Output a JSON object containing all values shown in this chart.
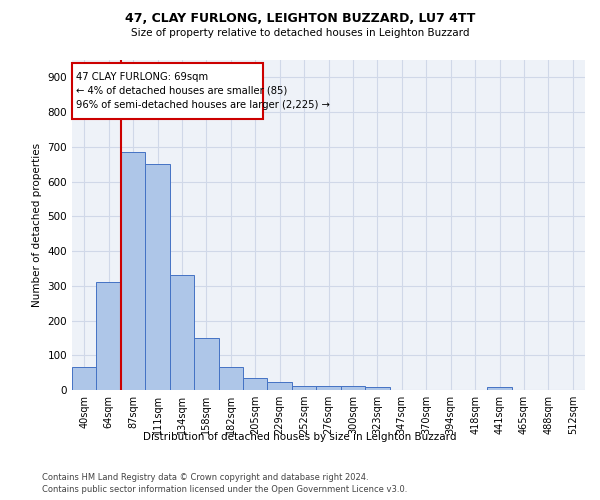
{
  "title1": "47, CLAY FURLONG, LEIGHTON BUZZARD, LU7 4TT",
  "title2": "Size of property relative to detached houses in Leighton Buzzard",
  "xlabel": "Distribution of detached houses by size in Leighton Buzzard",
  "ylabel": "Number of detached properties",
  "bin_labels": [
    "40sqm",
    "64sqm",
    "87sqm",
    "111sqm",
    "134sqm",
    "158sqm",
    "182sqm",
    "205sqm",
    "229sqm",
    "252sqm",
    "276sqm",
    "300sqm",
    "323sqm",
    "347sqm",
    "370sqm",
    "394sqm",
    "418sqm",
    "441sqm",
    "465sqm",
    "488sqm",
    "512sqm"
  ],
  "bar_heights": [
    65,
    310,
    685,
    650,
    330,
    150,
    65,
    35,
    22,
    12,
    12,
    12,
    8,
    0,
    0,
    0,
    0,
    10,
    0,
    0,
    0
  ],
  "bar_color": "#aec6e8",
  "bar_edge_color": "#4472c4",
  "annotation_text": "47 CLAY FURLONG: 69sqm\n← 4% of detached houses are smaller (85)\n96% of semi-detached houses are larger (2,225) →",
  "vline_color": "#cc0000",
  "box_edge_color": "#cc0000",
  "ylim": [
    0,
    950
  ],
  "yticks": [
    0,
    100,
    200,
    300,
    400,
    500,
    600,
    700,
    800,
    900
  ],
  "footer1": "Contains HM Land Registry data © Crown copyright and database right 2024.",
  "footer2": "Contains public sector information licensed under the Open Government Licence v3.0.",
  "grid_color": "#d0d8e8",
  "background_color": "#eef2f8"
}
